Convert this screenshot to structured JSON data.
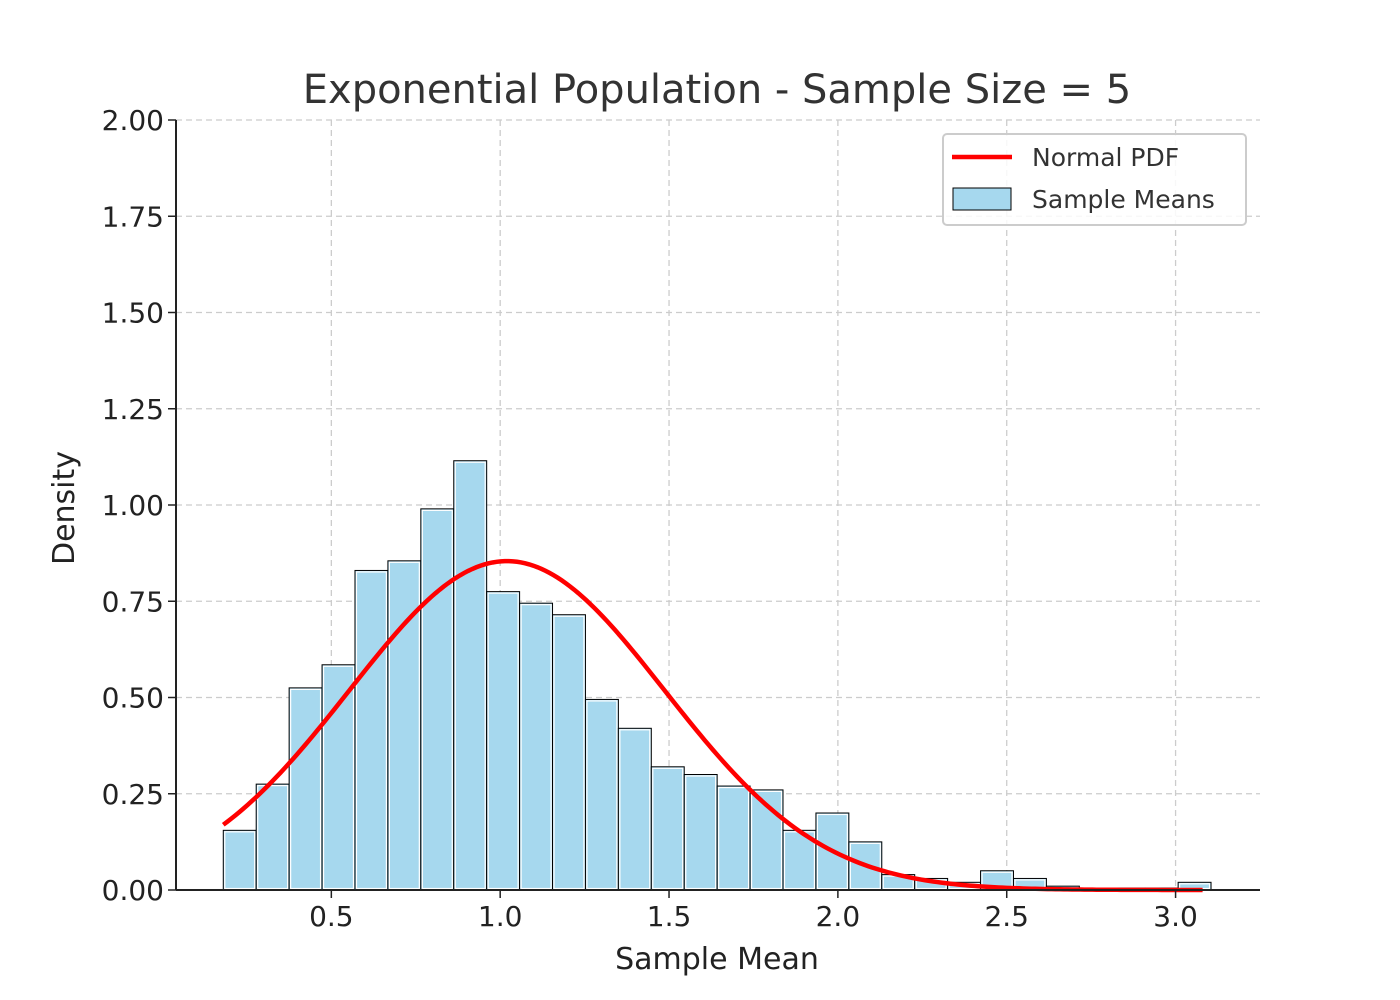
{
  "chart_data": {
    "type": "bar",
    "title": "Exponential Population - Sample Size = 5",
    "xlabel": "Sample Mean",
    "ylabel": "Density",
    "xlim": [
      0.04,
      3.25
    ],
    "ylim": [
      0,
      2.0
    ],
    "xticks": [
      "0.5",
      "1.0",
      "1.5",
      "2.0",
      "2.5",
      "3.0"
    ],
    "xtick_values": [
      0.5,
      1.0,
      1.5,
      2.0,
      2.5,
      3.0
    ],
    "yticks": [
      "0.00",
      "0.25",
      "0.50",
      "0.75",
      "1.00",
      "1.25",
      "1.50",
      "1.75",
      "2.00"
    ],
    "ytick_values": [
      0.0,
      0.25,
      0.5,
      0.75,
      1.0,
      1.25,
      1.5,
      1.75,
      2.0
    ],
    "grid": true,
    "legend_position": "top-right",
    "histogram": {
      "name": "Sample Means",
      "color": "#a6d8ee",
      "bin_start": 0.18,
      "bin_width": 0.0975,
      "values": [
        0.155,
        0.275,
        0.525,
        0.585,
        0.83,
        0.855,
        0.99,
        1.115,
        0.775,
        0.745,
        0.715,
        0.495,
        0.42,
        0.32,
        0.3,
        0.27,
        0.26,
        0.155,
        0.2,
        0.125,
        0.04,
        0.03,
        0.02,
        0.05,
        0.03,
        0.01,
        0.005,
        0.005,
        0.005,
        0.02
      ]
    },
    "normal_pdf": {
      "name": "Normal PDF",
      "color": "#ff0000",
      "mean": 1.02,
      "std": 0.467,
      "x_range": [
        0.18,
        3.08
      ]
    },
    "legend": [
      "Normal PDF",
      "Sample Means"
    ]
  }
}
